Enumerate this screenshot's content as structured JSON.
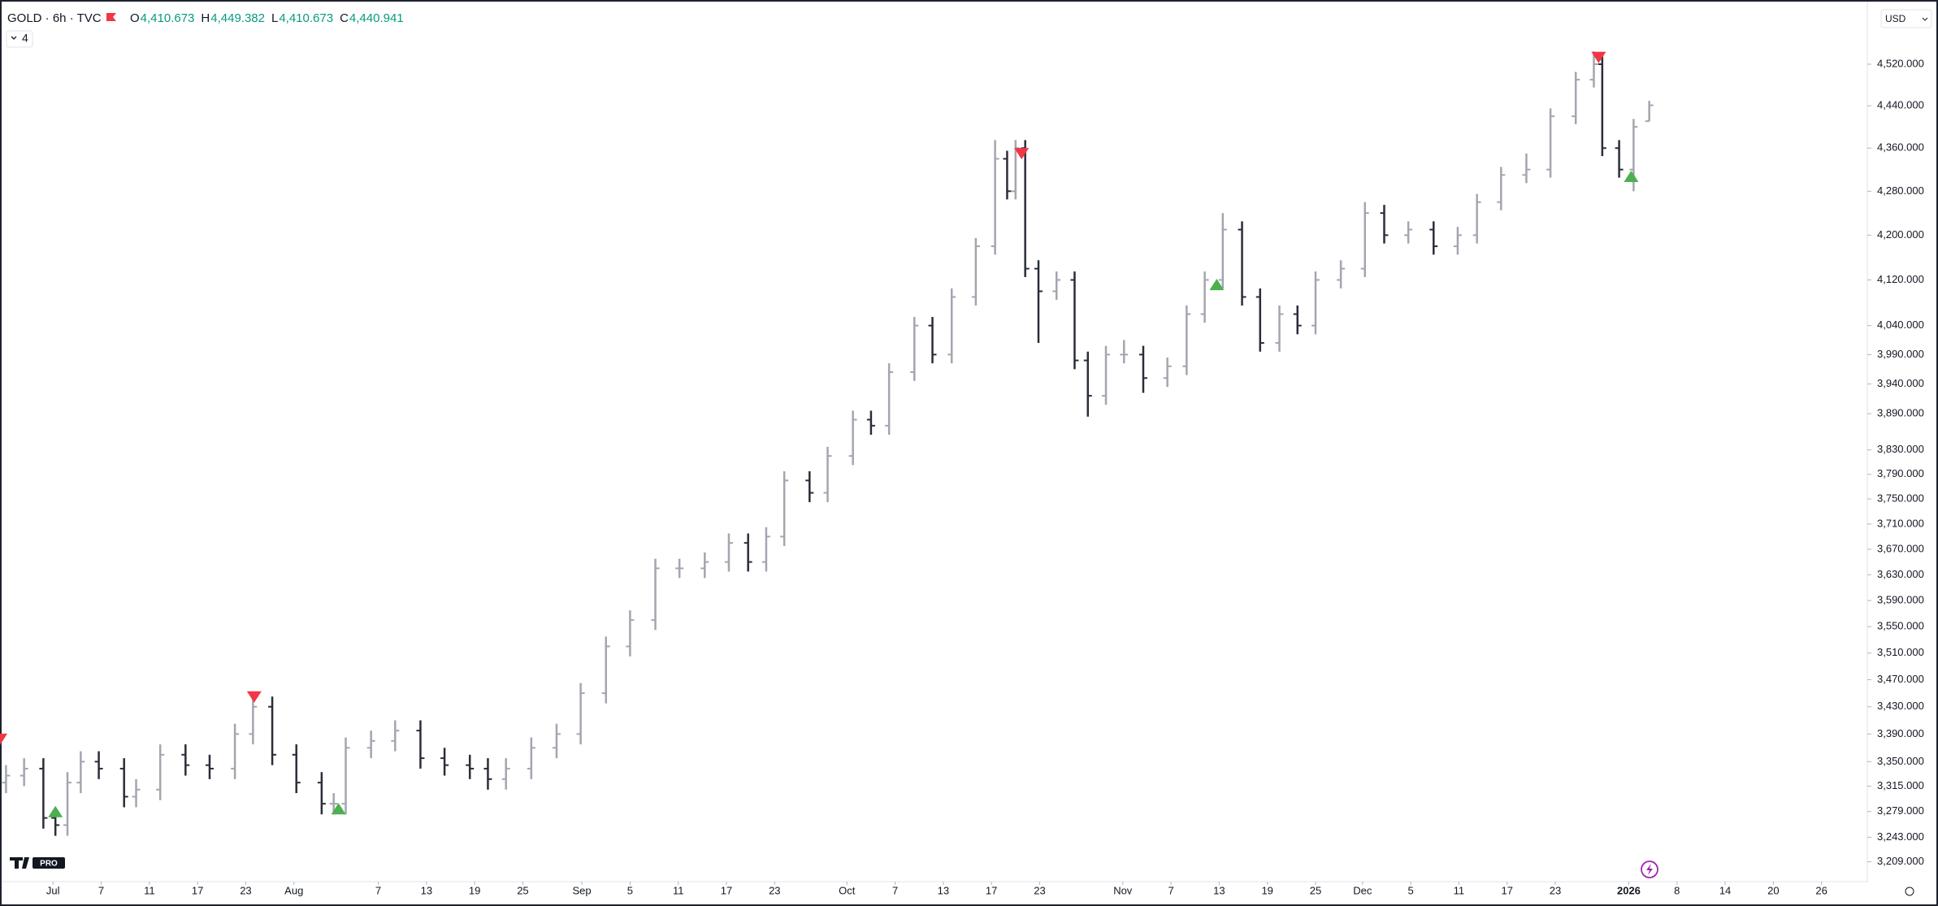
{
  "chart_data": {
    "type": "ohlc",
    "symbol": "GOLD · 6h · TVC",
    "ohlc_legend": [
      {
        "key": "O",
        "label": "4,410.673"
      },
      {
        "key": "H",
        "label": "4,449.382"
      },
      {
        "key": "L",
        "label": "4,410.673"
      },
      {
        "key": "C",
        "label": "4,440.941"
      }
    ],
    "indicators": 4,
    "currency": "USD",
    "logo": "PRO",
    "log_scale": true,
    "up_color": "#a3a6af",
    "down_color": "#2a2e39",
    "xlim": [
      0,
      155
    ],
    "ylim": [
      3184,
      4635
    ],
    "x": [
      0.5,
      2,
      3.6,
      4.6,
      5.6,
      6.7,
      8.2,
      10.3,
      11.3,
      13.3,
      15.4,
      17.4,
      19.5,
      21,
      22.6,
      24.6,
      26.7,
      27.7,
      28.7,
      30.8,
      32.8,
      34.9,
      36.9,
      39,
      40.5,
      42,
      44.1,
      46.2,
      48.2,
      50.3,
      52.3,
      54.4,
      56.4,
      58.5,
      60.5,
      62.1,
      63.6,
      65.1,
      67.2,
      68.7,
      70.8,
      72.3,
      73.8,
      75.9,
      77.4,
      79,
      81,
      82.6,
      83.6,
      84.3,
      85.1,
      86.2,
      87.7,
      89.2,
      90.3,
      91.8,
      93.3,
      94.9,
      96.9,
      98.5,
      100,
      101.5,
      103.1,
      104.6,
      106.2,
      107.7,
      109.2,
      111.3,
      113.3,
      114.9,
      116.9,
      119,
      121,
      122.6,
      124.6,
      126.7,
      128.7,
      130.8,
      132.3,
      133,
      134.4,
      135.6,
      136.9
    ],
    "open": [
      3320,
      3330,
      3340,
      3270,
      3260,
      3320,
      3350,
      3340,
      3300,
      3310,
      3360,
      3345,
      3340,
      3390,
      3430,
      3360,
      3320,
      3290,
      3290,
      3370,
      3380,
      3395,
      3355,
      3345,
      3340,
      3325,
      3340,
      3370,
      3390,
      3450,
      3520,
      3560,
      3640,
      3640,
      3650,
      3680,
      3650,
      3690,
      3780,
      3760,
      3820,
      3880,
      3870,
      3960,
      4040,
      3990,
      4090,
      4180,
      4340,
      4280,
      4360,
      4140,
      4100,
      4120,
      3980,
      3920,
      3990,
      3990,
      3950,
      3970,
      4060,
      4120,
      4210,
      4090,
      4010,
      4060,
      4040,
      4120,
      4140,
      4240,
      4200,
      4210,
      4180,
      4200,
      4260,
      4310,
      4320,
      4420,
      4490,
      4520,
      4360,
      4320,
      4410.673
    ],
    "high": [
      3345,
      3355,
      3355,
      3285,
      3335,
      3365,
      3365,
      3355,
      3325,
      3375,
      3375,
      3360,
      3405,
      3445,
      3445,
      3375,
      3335,
      3305,
      3385,
      3395,
      3410,
      3410,
      3370,
      3360,
      3355,
      3355,
      3385,
      3405,
      3465,
      3535,
      3575,
      3655,
      3655,
      3665,
      3695,
      3695,
      3705,
      3795,
      3795,
      3835,
      3895,
      3895,
      3975,
      4055,
      4055,
      4105,
      4195,
      4375,
      4355,
      4375,
      4375,
      4155,
      4135,
      4135,
      3995,
      4005,
      4015,
      4005,
      3985,
      4075,
      4135,
      4240,
      4225,
      4105,
      4075,
      4075,
      4135,
      4155,
      4260,
      4255,
      4225,
      4225,
      4215,
      4275,
      4325,
      4350,
      4435,
      4505,
      4545,
      4535,
      4375,
      4415,
      4449.382
    ],
    "low": [
      3305,
      3315,
      3255,
      3245,
      3245,
      3305,
      3325,
      3285,
      3285,
      3295,
      3330,
      3325,
      3325,
      3375,
      3345,
      3305,
      3275,
      3275,
      3275,
      3355,
      3365,
      3340,
      3330,
      3325,
      3310,
      3310,
      3325,
      3355,
      3375,
      3435,
      3505,
      3545,
      3625,
      3625,
      3635,
      3635,
      3635,
      3675,
      3745,
      3745,
      3805,
      3855,
      3855,
      3945,
      3975,
      3975,
      4075,
      4165,
      4265,
      4265,
      4125,
      4010,
      4085,
      3965,
      3885,
      3905,
      3975,
      3925,
      3935,
      3955,
      4045,
      4105,
      4075,
      3995,
      3995,
      4025,
      4025,
      4105,
      4125,
      4185,
      4185,
      4165,
      4165,
      4185,
      4245,
      4295,
      4305,
      4405,
      4475,
      4345,
      4305,
      4280,
      4410.673
    ],
    "close": [
      3330,
      3340,
      3270,
      3260,
      3320,
      3350,
      3340,
      3300,
      3310,
      3360,
      3345,
      3340,
      3390,
      3430,
      3360,
      3320,
      3290,
      3290,
      3370,
      3380,
      3395,
      3355,
      3345,
      3340,
      3325,
      3340,
      3370,
      3390,
      3450,
      3520,
      3560,
      3640,
      3640,
      3650,
      3680,
      3650,
      3690,
      3780,
      3760,
      3820,
      3880,
      3870,
      3960,
      4040,
      3990,
      4090,
      4180,
      4340,
      4280,
      4360,
      4140,
      4100,
      4120,
      3980,
      3920,
      3990,
      3990,
      3950,
      3970,
      4060,
      4120,
      4210,
      4090,
      4010,
      4060,
      4040,
      4120,
      4140,
      4240,
      4200,
      4210,
      4180,
      4200,
      4260,
      4310,
      4320,
      4420,
      4490,
      4520,
      4360,
      4320,
      4400,
      4440.941
    ],
    "sell_signals": {
      "color": "#f23645",
      "x": [
        0,
        21.1,
        84.8,
        132.7
      ],
      "y": [
        3374,
        3436,
        4339,
        4522
      ]
    },
    "buy_signals": {
      "color": "#4caf50",
      "x": [
        4.6,
        28.1,
        101,
        135.4
      ],
      "y": [
        3287,
        3291,
        4122,
        4318
      ]
    },
    "xticks": [
      {
        "value": 4.4,
        "label": "Jul"
      },
      {
        "value": 8.4,
        "label": "7"
      },
      {
        "value": 12.4,
        "label": "11"
      },
      {
        "value": 16.4,
        "label": "17"
      },
      {
        "value": 20.4,
        "label": "23"
      },
      {
        "value": 24.4,
        "label": "Aug"
      },
      {
        "value": 31.4,
        "label": "7"
      },
      {
        "value": 35.4,
        "label": "13"
      },
      {
        "value": 39.4,
        "label": "19"
      },
      {
        "value": 43.4,
        "label": "25"
      },
      {
        "value": 48.3,
        "label": "Sep"
      },
      {
        "value": 52.3,
        "label": "5"
      },
      {
        "value": 56.3,
        "label": "11"
      },
      {
        "value": 60.3,
        "label": "17"
      },
      {
        "value": 64.3,
        "label": "23"
      },
      {
        "value": 70.3,
        "label": "Oct"
      },
      {
        "value": 74.3,
        "label": "7"
      },
      {
        "value": 78.3,
        "label": "13"
      },
      {
        "value": 82.3,
        "label": "17"
      },
      {
        "value": 86.3,
        "label": "23"
      },
      {
        "value": 93.2,
        "label": "Nov"
      },
      {
        "value": 97.2,
        "label": "7"
      },
      {
        "value": 101.2,
        "label": "13"
      },
      {
        "value": 105.2,
        "label": "19"
      },
      {
        "value": 109.2,
        "label": "25"
      },
      {
        "value": 113.1,
        "label": "Dec"
      },
      {
        "value": 117.1,
        "label": "5"
      },
      {
        "value": 121.1,
        "label": "11"
      },
      {
        "value": 125.1,
        "label": "17"
      },
      {
        "value": 129.1,
        "label": "23"
      },
      {
        "value": 135.2,
        "label": "2026"
      },
      {
        "value": 139.2,
        "label": "8"
      },
      {
        "value": 143.2,
        "label": "14"
      },
      {
        "value": 147.2,
        "label": "20"
      },
      {
        "value": 151.2,
        "label": "26"
      }
    ],
    "yticks": [
      {
        "value": 4520,
        "label": "4,520.000"
      },
      {
        "value": 4440,
        "label": "4,440.000"
      },
      {
        "value": 4360,
        "label": "4,360.000"
      },
      {
        "value": 4280,
        "label": "4,280.000"
      },
      {
        "value": 4200,
        "label": "4,200.000"
      },
      {
        "value": 4120,
        "label": "4,120.000"
      },
      {
        "value": 4040,
        "label": "4,040.000"
      },
      {
        "value": 3990,
        "label": "3,990.000"
      },
      {
        "value": 3940,
        "label": "3,940.000"
      },
      {
        "value": 3890,
        "label": "3,890.000"
      },
      {
        "value": 3830,
        "label": "3,830.000"
      },
      {
        "value": 3790,
        "label": "3,790.000"
      },
      {
        "value": 3750,
        "label": "3,750.000"
      },
      {
        "value": 3710,
        "label": "3,710.000"
      },
      {
        "value": 3670,
        "label": "3,670.000"
      },
      {
        "value": 3630,
        "label": "3,630.000"
      },
      {
        "value": 3590,
        "label": "3,590.000"
      },
      {
        "value": 3550,
        "label": "3,550.000"
      },
      {
        "value": 3510,
        "label": "3,510.000"
      },
      {
        "value": 3470,
        "label": "3,470.000"
      },
      {
        "value": 3430,
        "label": "3,430.000"
      },
      {
        "value": 3390,
        "label": "3,390.000"
      },
      {
        "value": 3350,
        "label": "3,350.000"
      },
      {
        "value": 3315,
        "label": "3,315.000"
      },
      {
        "value": 3279,
        "label": "3,279.000"
      },
      {
        "value": 3243,
        "label": "3,243.000"
      },
      {
        "value": 3209,
        "label": "3,209.000"
      }
    ]
  }
}
